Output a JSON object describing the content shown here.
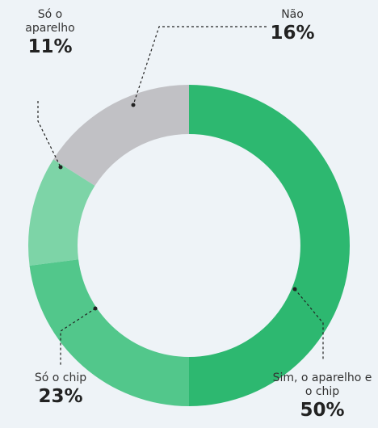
{
  "chart_data": {
    "type": "donut",
    "categories": [
      "Sim, o aparelho e o chip",
      "Só o chip",
      "Só o aparelho",
      "Não"
    ],
    "values": [
      50,
      23,
      11,
      16
    ],
    "value_labels": [
      "50%",
      "23%",
      "11%",
      "16%"
    ],
    "colors": [
      "#2db870",
      "#52c78b",
      "#7dd4a7",
      "#c1c1c5"
    ]
  }
}
